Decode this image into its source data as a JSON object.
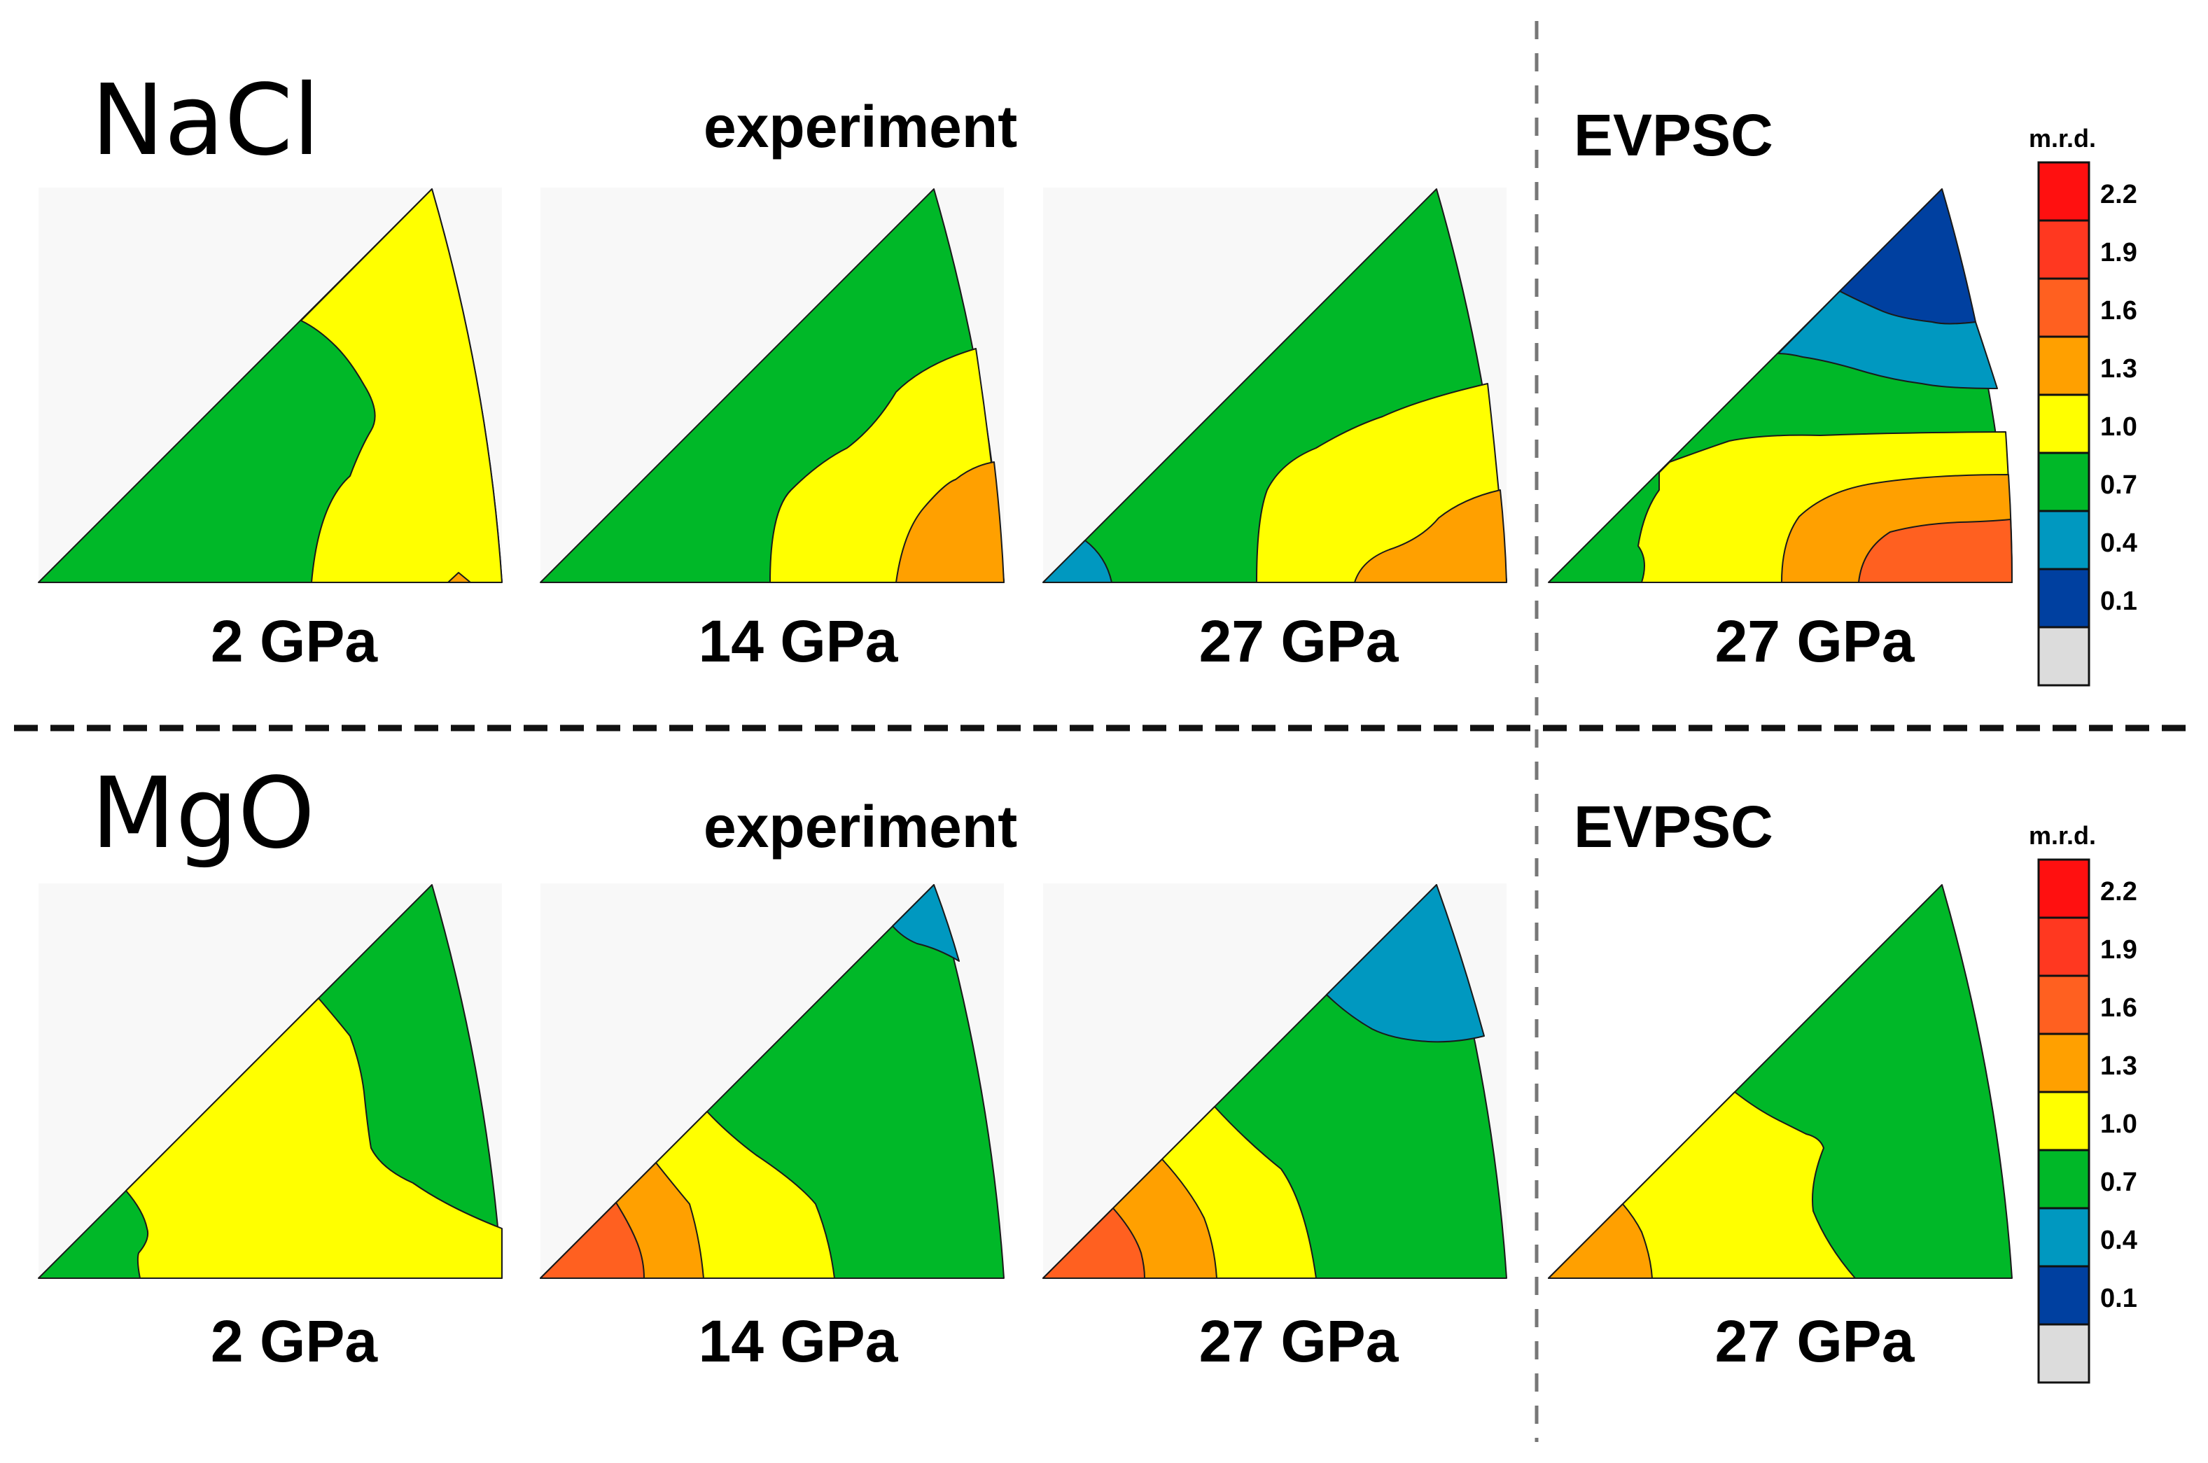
{
  "figure": {
    "methods": {
      "experiment": "experiment",
      "model": "EVPSC"
    },
    "materials": [
      {
        "name": "NaCl",
        "experiment_label": "experiment",
        "model_label": "EVPSC",
        "panels": [
          {
            "pressure": "2 GPa",
            "source": "experiment"
          },
          {
            "pressure": "14 GPa",
            "source": "experiment"
          },
          {
            "pressure": "27 GPa",
            "source": "experiment"
          },
          {
            "pressure": "27 GPa",
            "source": "EVPSC"
          }
        ]
      },
      {
        "name": "MgO",
        "experiment_label": "experiment",
        "model_label": "EVPSC",
        "panels": [
          {
            "pressure": "2 GPa",
            "source": "experiment"
          },
          {
            "pressure": "14 GPa",
            "source": "experiment"
          },
          {
            "pressure": "27 GPa",
            "source": "experiment"
          },
          {
            "pressure": "27 GPa",
            "source": "EVPSC"
          }
        ]
      }
    ],
    "colorbar": {
      "title": "m.r.d.",
      "ticks": [
        "2.2",
        "1.9",
        "1.6",
        "1.3",
        "1.0",
        "0.7",
        "0.4",
        "0.1"
      ],
      "colors_top_to_bottom": [
        "#ff1010",
        "#ff3820",
        "#ff6020",
        "#ffa000",
        "#ffff00",
        "#00b828",
        "#0098c0",
        "#0040a0",
        "#dcdcdc"
      ]
    },
    "palette": {
      "green": "#00b828",
      "yellow": "#ffff00",
      "orange": "#ffa000",
      "dark_orange": "#ff6020",
      "light_blue": "#0098c0",
      "dark_blue": "#0040a0",
      "background": "#f8f8f8"
    }
  }
}
